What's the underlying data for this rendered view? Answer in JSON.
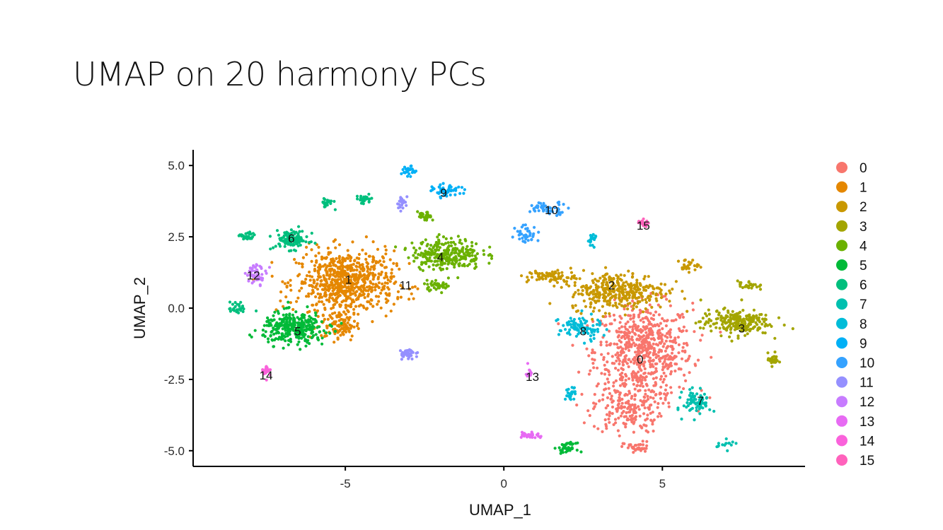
{
  "slide": {
    "title": "UMAP on 20 harmony PCs"
  },
  "chart_data": {
    "type": "scatter",
    "title": "",
    "xlabel": "UMAP_1",
    "ylabel": "UMAP_2",
    "xlim": [
      -9.8,
      9.5
    ],
    "ylim": [
      -5.55,
      5.55
    ],
    "x_ticks": [
      -5,
      0,
      5
    ],
    "x_tick_labels": [
      "-5",
      "0",
      "5"
    ],
    "y_ticks": [
      5,
      2.5,
      0,
      -2.5,
      -5
    ],
    "y_tick_labels": [
      "5.0",
      "2.5",
      "0.0",
      "-2.5",
      "-5.0"
    ],
    "grid": false,
    "legend_position": "right",
    "series": [
      {
        "name": "0",
        "color": "#F8766D",
        "label_pos": [
          4.3,
          -1.8
        ],
        "blobs": [
          [
            4.4,
            -1.5,
            1.4,
            1.5,
            650
          ],
          [
            3.9,
            -3.5,
            1.0,
            0.8,
            180
          ],
          [
            4.2,
            -4.9,
            0.4,
            0.2,
            35
          ]
        ]
      },
      {
        "name": "1",
        "color": "#E58700",
        "label_pos": [
          -4.9,
          1.0
        ],
        "blobs": [
          [
            -5.0,
            0.9,
            1.4,
            1.0,
            700
          ],
          [
            -5.2,
            -0.6,
            0.5,
            0.5,
            90
          ]
        ]
      },
      {
        "name": "2",
        "color": "#C99800",
        "label_pos": [
          3.4,
          0.8
        ],
        "blobs": [
          [
            3.6,
            0.6,
            1.4,
            0.6,
            350
          ],
          [
            1.5,
            1.1,
            0.7,
            0.2,
            70
          ],
          [
            5.8,
            1.5,
            0.3,
            0.2,
            25
          ]
        ]
      },
      {
        "name": "3",
        "color": "#A3A500",
        "label_pos": [
          7.5,
          -0.7
        ],
        "blobs": [
          [
            7.3,
            -0.5,
            1.0,
            0.4,
            220
          ],
          [
            8.5,
            -1.8,
            0.15,
            0.2,
            30
          ],
          [
            7.7,
            0.8,
            0.3,
            0.15,
            25
          ]
        ]
      },
      {
        "name": "4",
        "color": "#6BB100",
        "label_pos": [
          -2.0,
          1.8
        ],
        "blobs": [
          [
            -1.8,
            1.9,
            1.0,
            0.5,
            280
          ],
          [
            -2.1,
            0.8,
            0.4,
            0.15,
            40
          ],
          [
            -2.5,
            3.2,
            0.2,
            0.15,
            25
          ]
        ]
      },
      {
        "name": "5",
        "color": "#00BA38",
        "label_pos": [
          -6.5,
          -0.8
        ],
        "blobs": [
          [
            -6.6,
            -0.7,
            0.9,
            0.5,
            320
          ],
          [
            2.0,
            -4.9,
            0.25,
            0.15,
            40
          ]
        ]
      },
      {
        "name": "6",
        "color": "#00BF7D",
        "label_pos": [
          -6.7,
          2.45
        ],
        "blobs": [
          [
            -6.7,
            2.4,
            0.5,
            0.3,
            110
          ],
          [
            -8.1,
            2.5,
            0.2,
            0.15,
            30
          ],
          [
            -5.6,
            3.7,
            0.2,
            0.15,
            25
          ],
          [
            -4.4,
            3.8,
            0.25,
            0.15,
            25
          ],
          [
            -8.4,
            0.0,
            0.25,
            0.2,
            30
          ]
        ]
      },
      {
        "name": "7",
        "color": "#00C0AF",
        "label_pos": [
          6.2,
          -3.25
        ],
        "blobs": [
          [
            6.1,
            -3.3,
            0.4,
            0.4,
            80
          ],
          [
            7.0,
            -4.8,
            0.3,
            0.15,
            15
          ]
        ]
      },
      {
        "name": "8",
        "color": "#00BCD8",
        "label_pos": [
          2.5,
          -0.8
        ],
        "blobs": [
          [
            2.4,
            -0.7,
            0.6,
            0.4,
            90
          ],
          [
            2.1,
            -3.0,
            0.15,
            0.2,
            25
          ],
          [
            2.8,
            2.4,
            0.15,
            0.2,
            20
          ]
        ]
      },
      {
        "name": "9",
        "color": "#00B0F6",
        "label_pos": [
          -1.9,
          4.05
        ],
        "blobs": [
          [
            -1.8,
            4.1,
            0.4,
            0.2,
            50
          ],
          [
            -3.0,
            4.8,
            0.2,
            0.15,
            30
          ]
        ]
      },
      {
        "name": "10",
        "color": "#35A2FF",
        "label_pos": [
          1.5,
          3.45
        ],
        "blobs": [
          [
            1.4,
            3.5,
            0.6,
            0.2,
            55
          ],
          [
            0.7,
            2.6,
            0.3,
            0.3,
            40
          ]
        ]
      },
      {
        "name": "11",
        "color": "#9590FF",
        "label_pos": [
          -3.1,
          0.8
        ],
        "blobs": [
          [
            -3.0,
            -1.6,
            0.3,
            0.15,
            35
          ],
          [
            -3.2,
            3.7,
            0.15,
            0.2,
            20
          ]
        ]
      },
      {
        "name": "12",
        "color": "#C77CFF",
        "label_pos": [
          -7.9,
          1.15
        ],
        "blobs": [
          [
            -7.8,
            1.2,
            0.3,
            0.3,
            50
          ]
        ]
      },
      {
        "name": "13",
        "color": "#E76BF3",
        "label_pos": [
          0.9,
          -2.4
        ],
        "blobs": [
          [
            0.8,
            -4.45,
            0.3,
            0.1,
            30
          ],
          [
            0.8,
            -2.2,
            0.1,
            0.2,
            10
          ]
        ]
      },
      {
        "name": "14",
        "color": "#FA62DB",
        "label_pos": [
          -7.5,
          -2.35
        ],
        "blobs": [
          [
            -7.5,
            -2.2,
            0.12,
            0.2,
            30
          ]
        ]
      },
      {
        "name": "15",
        "color": "#FF62BC",
        "label_pos": [
          4.4,
          2.9
        ],
        "blobs": [
          [
            4.4,
            3.0,
            0.15,
            0.12,
            18
          ]
        ]
      }
    ]
  }
}
